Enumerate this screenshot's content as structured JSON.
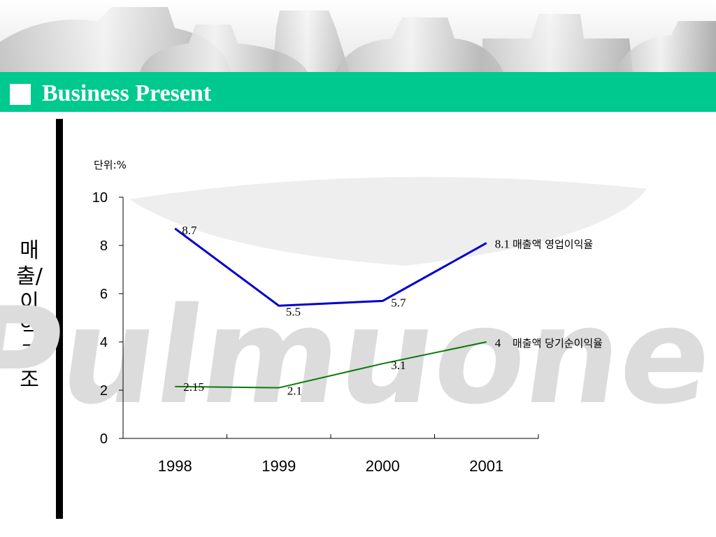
{
  "header": {
    "title": "Business Present",
    "title_square": "square-bullet"
  },
  "side_label": "매출/이익 구조",
  "watermark": "Pulmuone",
  "chart_data": {
    "type": "line",
    "unit_label": "단위:%",
    "categories": [
      "1998",
      "1999",
      "2000",
      "2001"
    ],
    "ylim": [
      0,
      10
    ],
    "yticks": [
      "0",
      "2",
      "4",
      "6",
      "8",
      "10"
    ],
    "grid": false,
    "series": [
      {
        "name": "매출액 영업이익율",
        "color": "#0000cc",
        "values": [
          8.7,
          5.5,
          5.7,
          8.1
        ],
        "labels": [
          "8.7",
          "5.5",
          "5.7",
          "8.1"
        ]
      },
      {
        "name": "매출액 당기순이익율",
        "color": "#0a7a0a",
        "values": [
          2.15,
          2.1,
          3.1,
          4
        ],
        "labels": [
          "2.15",
          "2.1",
          "3.1",
          "4"
        ]
      }
    ]
  },
  "colors": {
    "title_bar": "#00c98f",
    "side_bar": "#000000"
  }
}
